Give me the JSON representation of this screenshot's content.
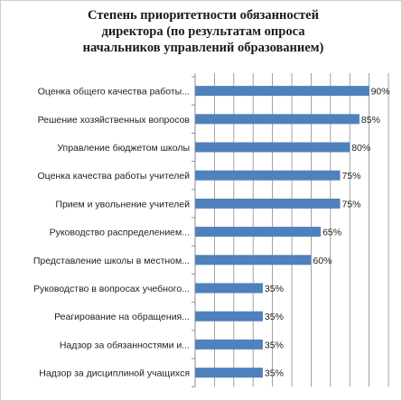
{
  "chart_data": {
    "type": "bar",
    "orientation": "horizontal",
    "title": [
      "Степень приоритетности обязанностей",
      "директора (по результатам опроса",
      "начальников управлений образованием)"
    ],
    "categories": [
      "Оценка общего качества работы...",
      "Решение хозяйственных вопросов",
      "Управление бюджетом школы",
      "Оценка качества работы учителей",
      "Прием и увольнение учителей",
      "Руководство распределением...",
      "Представление школы в местном...",
      "Руководство в вопросах учебного...",
      "Реагирование на обращения...",
      "Надзор за обязанностями и...",
      "Надзор за дисциплиной учащихся"
    ],
    "values": [
      90,
      85,
      80,
      75,
      75,
      65,
      60,
      35,
      35,
      35,
      35
    ],
    "value_labels": [
      "90%",
      "85%",
      "80%",
      "75%",
      "75%",
      "65%",
      "60%",
      "35%",
      "35%",
      "35%",
      "35%"
    ],
    "xlim": [
      0,
      100
    ],
    "grid": true,
    "bar_color": "#4f81bd"
  }
}
